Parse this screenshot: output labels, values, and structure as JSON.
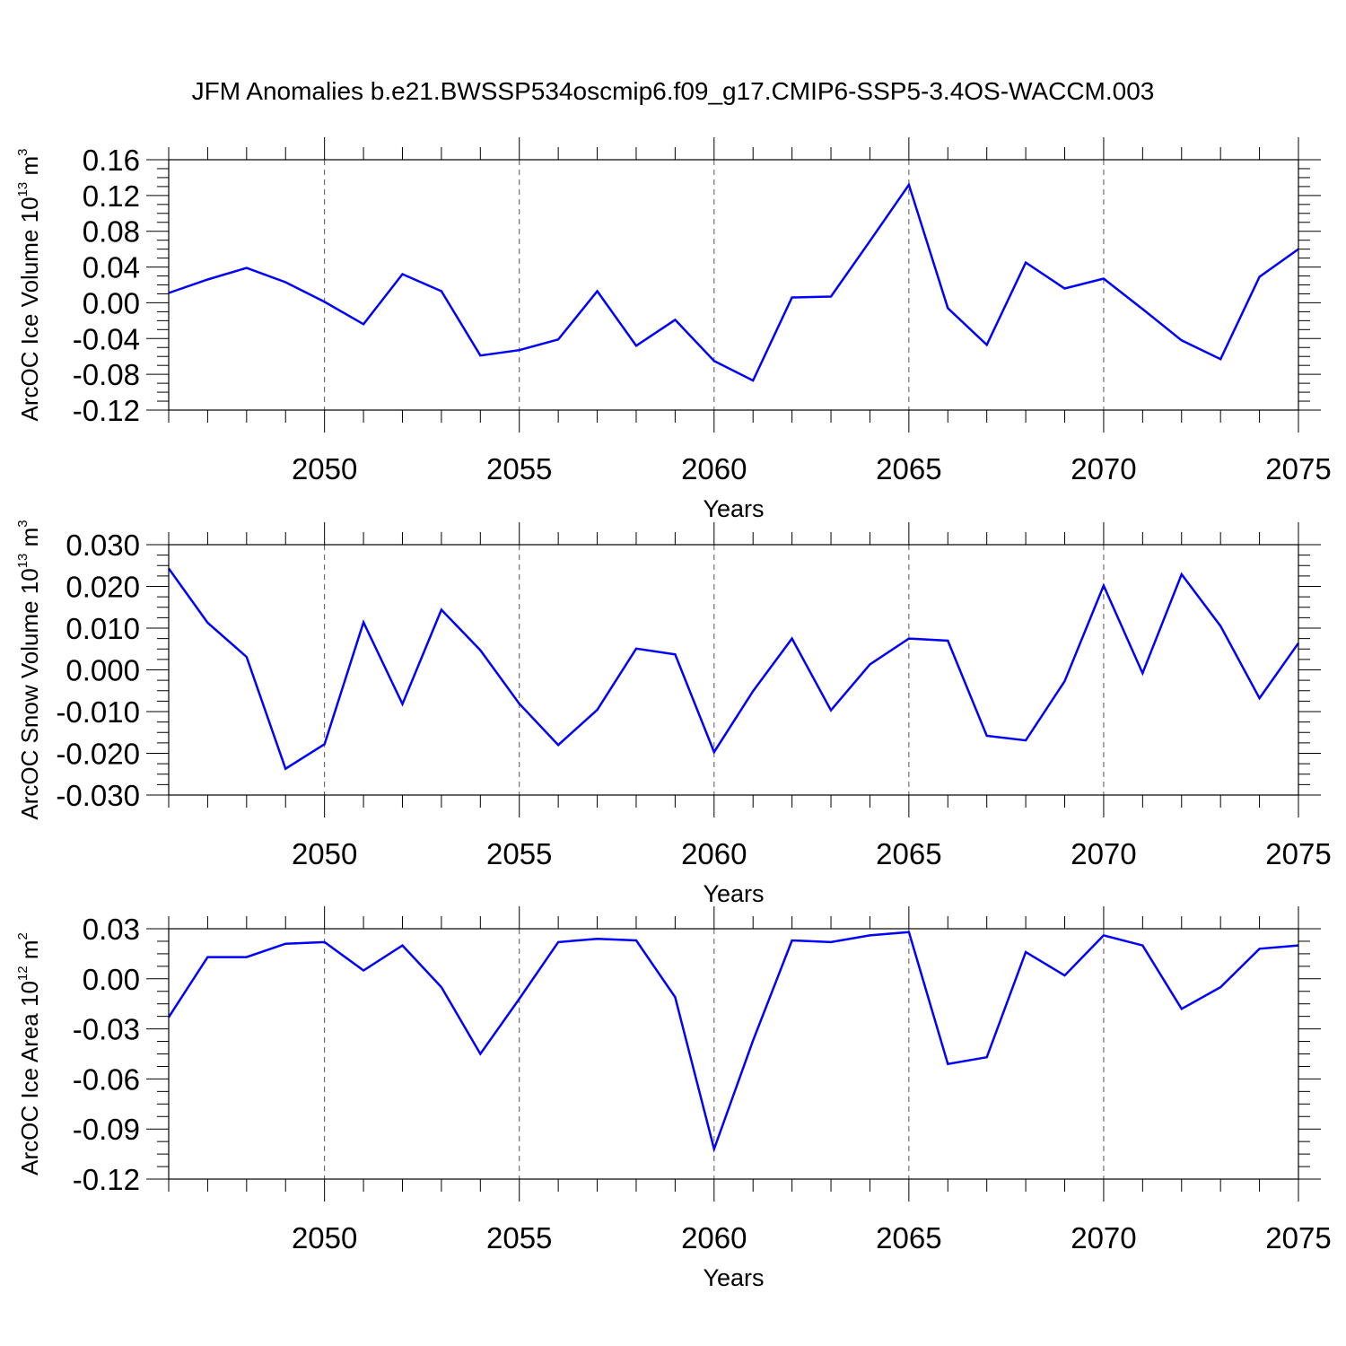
{
  "title": "JFM Anomalies b.e21.BWSSP534oscmip6.f09_g17.CMIP6-SSP5-3.4OS-WACCM.003",
  "colors": {
    "line": "#0000ff",
    "axis": "#000000",
    "grid": "#555555"
  },
  "chart_data": [
    {
      "type": "line",
      "ylabel": {
        "main": "ArcOC Ice Volume 10",
        "exp": "13",
        "unit": " m",
        "unit_exp": "3"
      },
      "xlabel": "Years",
      "xlim": [
        2046,
        2075
      ],
      "ylim": [
        -0.12,
        0.16
      ],
      "yticks": [
        -0.12,
        -0.08,
        -0.04,
        0.0,
        0.04,
        0.08,
        0.12,
        0.16
      ],
      "yticklabels": [
        "-0.12",
        "-0.08",
        "-0.04",
        "0.00",
        "0.04",
        "0.08",
        "0.12",
        "0.16"
      ],
      "xticks": [
        2050,
        2055,
        2060,
        2065,
        2070,
        2075
      ],
      "xticklabels": [
        "2050",
        "2055",
        "2060",
        "2065",
        "2070",
        "2075"
      ],
      "grid": "vertical dashed at labeled years",
      "series": [
        {
          "x": [
            2046,
            2047,
            2048,
            2049,
            2050,
            2051,
            2052,
            2053,
            2054,
            2055,
            2056,
            2057,
            2058,
            2059,
            2060,
            2061,
            2062,
            2063,
            2064,
            2065,
            2066,
            2067,
            2068,
            2069,
            2070,
            2071,
            2072,
            2073,
            2074,
            2075
          ],
          "values": [
            0.011,
            0.026,
            0.039,
            0.023,
            0.001,
            -0.024,
            0.032,
            0.013,
            -0.059,
            -0.053,
            -0.041,
            0.013,
            -0.048,
            -0.019,
            -0.065,
            -0.087,
            0.006,
            0.007,
            0.069,
            0.132,
            -0.006,
            -0.047,
            0.045,
            0.016,
            0.027,
            -0.007,
            -0.042,
            -0.063,
            0.029,
            0.06
          ]
        }
      ]
    },
    {
      "type": "line",
      "ylabel": {
        "main": "ArcOC Snow Volume 10",
        "exp": "13",
        "unit": " m",
        "unit_exp": "3"
      },
      "xlabel": "Years",
      "xlim": [
        2046,
        2075
      ],
      "ylim": [
        -0.03,
        0.03
      ],
      "yticks": [
        -0.03,
        -0.02,
        -0.01,
        0.0,
        0.01,
        0.02,
        0.03
      ],
      "yticklabels": [
        "-0.030",
        "-0.020",
        "-0.010",
        "0.000",
        "0.010",
        "0.020",
        "0.030"
      ],
      "xticks": [
        2050,
        2055,
        2060,
        2065,
        2070,
        2075
      ],
      "xticklabels": [
        "2050",
        "2055",
        "2060",
        "2065",
        "2070",
        "2075"
      ],
      "grid": "vertical dashed at labeled years",
      "series": [
        {
          "x": [
            2046,
            2047,
            2048,
            2049,
            2050,
            2051,
            2052,
            2053,
            2054,
            2055,
            2056,
            2057,
            2058,
            2059,
            2060,
            2061,
            2062,
            2063,
            2064,
            2065,
            2066,
            2067,
            2068,
            2069,
            2070,
            2071,
            2072,
            2073,
            2074,
            2075
          ],
          "values": [
            0.0243,
            0.0113,
            0.0031,
            -0.0237,
            -0.0178,
            0.0114,
            -0.0082,
            0.0144,
            0.0047,
            -0.0081,
            -0.018,
            -0.0096,
            0.0051,
            0.0037,
            -0.0197,
            -0.0051,
            0.0075,
            -0.0097,
            0.0013,
            0.0075,
            0.007,
            -0.0158,
            -0.0169,
            -0.0027,
            0.0202,
            -0.0008,
            0.0229,
            0.0105,
            -0.0068,
            0.0064
          ]
        }
      ]
    },
    {
      "type": "line",
      "ylabel": {
        "main": "ArcOC Ice Area 10",
        "exp": "12",
        "unit": " m",
        "unit_exp": "2"
      },
      "xlabel": "Years",
      "xlim": [
        2046,
        2075
      ],
      "ylim": [
        -0.12,
        0.03
      ],
      "yticks": [
        -0.12,
        -0.09,
        -0.06,
        -0.03,
        0.0,
        0.03
      ],
      "yticklabels": [
        "-0.12",
        "-0.09",
        "-0.06",
        "-0.03",
        "0.00",
        "0.03"
      ],
      "xticks": [
        2050,
        2055,
        2060,
        2065,
        2070,
        2075
      ],
      "xticklabels": [
        "2050",
        "2055",
        "2060",
        "2065",
        "2070",
        "2075"
      ],
      "grid": "vertical dashed at labeled years",
      "series": [
        {
          "x": [
            2046,
            2047,
            2048,
            2049,
            2050,
            2051,
            2052,
            2053,
            2054,
            2055,
            2056,
            2057,
            2058,
            2059,
            2060,
            2061,
            2062,
            2063,
            2064,
            2065,
            2066,
            2067,
            2068,
            2069,
            2070,
            2071,
            2072,
            2073,
            2074,
            2075
          ],
          "values": [
            -0.023,
            0.013,
            0.013,
            0.021,
            0.022,
            0.005,
            0.02,
            -0.005,
            -0.045,
            -0.012,
            0.022,
            0.024,
            0.023,
            -0.011,
            -0.102,
            -0.037,
            0.023,
            0.022,
            0.026,
            0.028,
            -0.051,
            -0.047,
            0.016,
            0.002,
            0.026,
            0.02,
            -0.018,
            -0.005,
            0.018,
            0.02
          ]
        }
      ]
    }
  ]
}
